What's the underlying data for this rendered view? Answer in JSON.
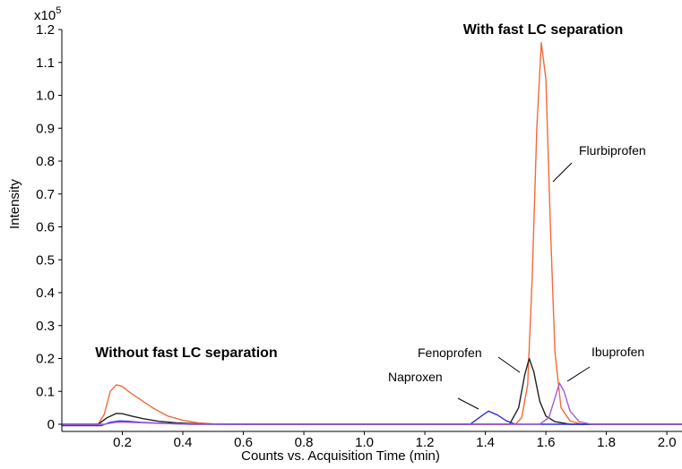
{
  "chart_data": {
    "type": "line",
    "multiplier_label": "x10",
    "multiplier_exponent": "5",
    "xlabel": "Counts vs. Acquisition Time (min)",
    "ylabel": "Intensity",
    "xlim": [
      0,
      2.05
    ],
    "ylim": [
      0,
      1.2
    ],
    "x_ticks": [
      "0.2",
      "0.4",
      "0.6",
      "0.8",
      "1.0",
      "1.2",
      "1.4",
      "1.6",
      "1.8",
      "2.0"
    ],
    "y_ticks": [
      "0",
      "0.1",
      "0.2",
      "0.3",
      "0.4",
      "0.5",
      "0.6",
      "0.7",
      "0.8",
      "0.9",
      "1.0",
      "1.1",
      "1.2"
    ],
    "grid": false,
    "colors": {
      "flurbiprofen": "#F4693A",
      "fenoprofen": "#222222",
      "naproxen": "#2F2FE8",
      "ibuprofen": "#A05AD8"
    },
    "series": [
      {
        "key": "flurbiprofen",
        "x": [
          0.0,
          0.12,
          0.14,
          0.16,
          0.18,
          0.2,
          0.22,
          0.26,
          0.3,
          0.35,
          0.4,
          0.45,
          0.5,
          0.6,
          1.5,
          1.52,
          1.54,
          1.555,
          1.57,
          1.585,
          1.6,
          1.615,
          1.63,
          1.65,
          1.68,
          1.72,
          2.05
        ],
        "y": [
          0.0,
          0.0,
          0.03,
          0.1,
          0.12,
          0.115,
          0.1,
          0.075,
          0.05,
          0.025,
          0.012,
          0.004,
          0.001,
          0.0,
          0.0,
          0.02,
          0.12,
          0.45,
          0.9,
          1.16,
          1.05,
          0.6,
          0.22,
          0.05,
          0.01,
          0.0,
          0.0
        ]
      },
      {
        "key": "fenoprofen",
        "x": [
          0.0,
          0.12,
          0.15,
          0.18,
          0.2,
          0.23,
          0.27,
          0.32,
          0.38,
          0.45,
          0.55,
          1.48,
          1.51,
          1.53,
          1.545,
          1.56,
          1.58,
          1.6,
          1.63,
          1.68,
          2.05
        ],
        "y": [
          0.0,
          0.0,
          0.02,
          0.033,
          0.032,
          0.025,
          0.017,
          0.009,
          0.004,
          0.001,
          0.0,
          0.0,
          0.05,
          0.15,
          0.2,
          0.16,
          0.07,
          0.025,
          0.008,
          0.0,
          0.0
        ]
      },
      {
        "key": "naproxen",
        "x": [
          0.0,
          0.13,
          0.16,
          0.19,
          0.22,
          0.26,
          0.3,
          0.36,
          0.42,
          0.5,
          0.75,
          1.35,
          1.38,
          1.41,
          1.44,
          1.47,
          1.5,
          2.05
        ],
        "y": [
          -0.004,
          -0.004,
          0.006,
          0.01,
          0.009,
          0.006,
          0.004,
          0.002,
          0.0,
          0.0,
          0.0,
          0.0,
          0.02,
          0.04,
          0.028,
          0.01,
          0.0,
          0.0
        ]
      },
      {
        "key": "ibuprofen",
        "x": [
          0.0,
          0.14,
          0.18,
          0.22,
          0.28,
          0.35,
          0.45,
          1.58,
          1.61,
          1.63,
          1.645,
          1.66,
          1.68,
          1.71,
          1.75,
          2.05
        ],
        "y": [
          0.0,
          0.0,
          0.006,
          0.006,
          0.004,
          0.002,
          0.0,
          0.0,
          0.02,
          0.08,
          0.125,
          0.1,
          0.04,
          0.008,
          0.0,
          0.0
        ]
      }
    ],
    "annotations": {
      "with_fast": "With fast LC separation",
      "without_fast": "Without fast LC separation",
      "flurbiprofen": "Flurbiprofen",
      "fenoprofen": "Fenoprofen",
      "naproxen": "Naproxen",
      "ibuprofen": "Ibuprofen"
    }
  }
}
